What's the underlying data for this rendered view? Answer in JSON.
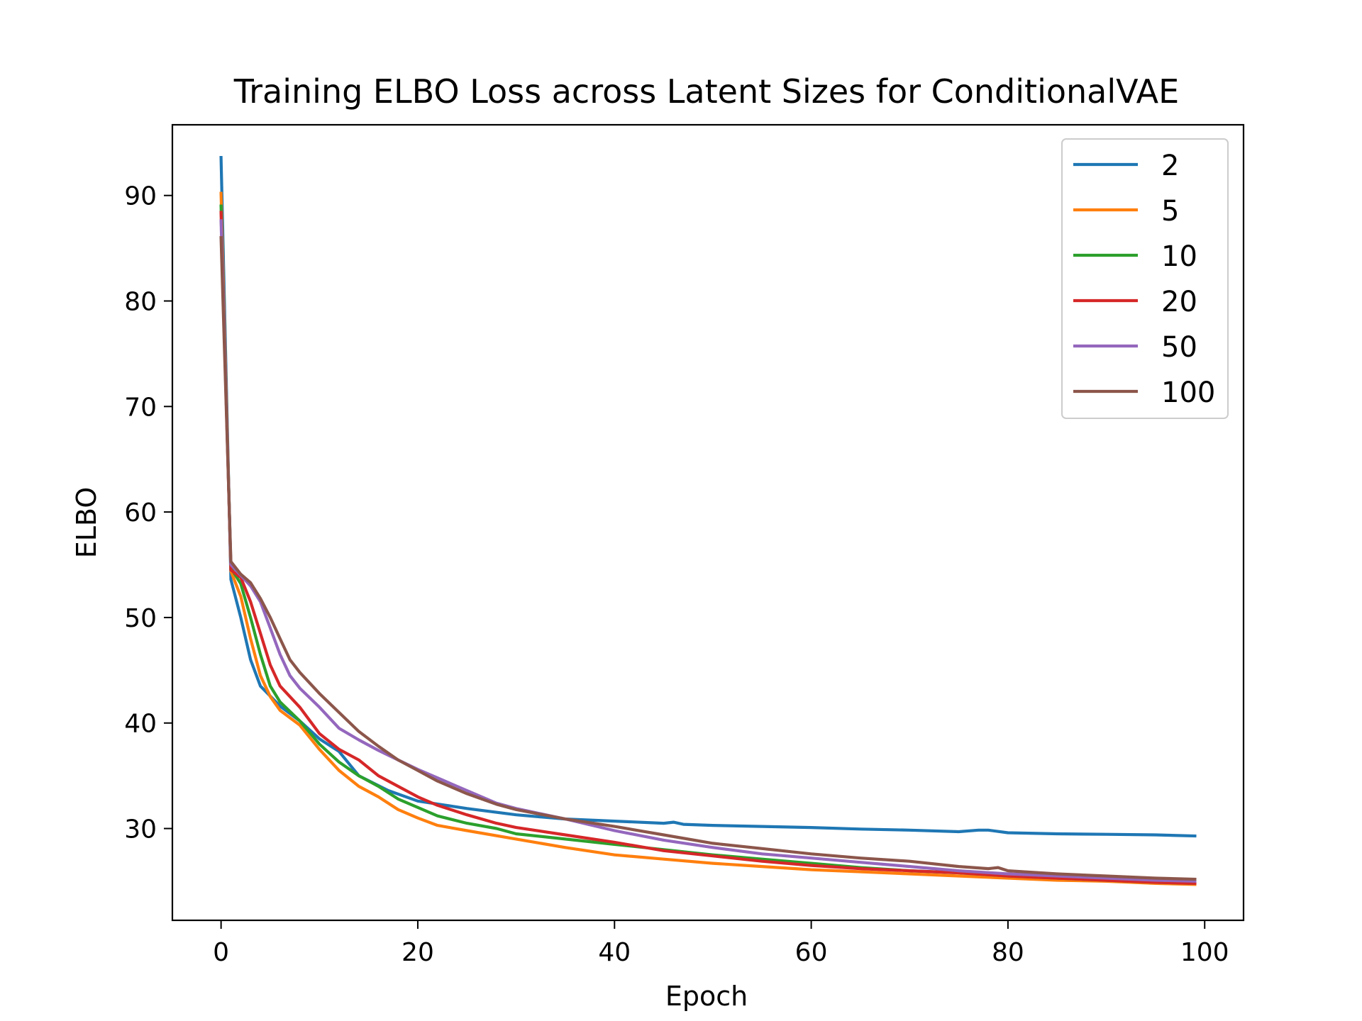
{
  "chart_data": {
    "type": "line",
    "title": "Training ELBO Loss across Latent Sizes for ConditionalVAE",
    "xlabel": "Epoch",
    "ylabel": "ELBO",
    "xlim": [
      -4.95,
      103.95
    ],
    "ylim": [
      21.3,
      96.7
    ],
    "xticks": [
      0,
      20,
      40,
      60,
      80,
      100
    ],
    "yticks": [
      30,
      40,
      50,
      60,
      70,
      80,
      90
    ],
    "grid": false,
    "legend_position": "top-right",
    "series": [
      {
        "name": "2",
        "color": "#1f77b4",
        "points": [
          [
            0,
            93.6
          ],
          [
            1,
            53.6
          ],
          [
            2,
            50.0
          ],
          [
            3,
            46.0
          ],
          [
            4,
            43.5
          ],
          [
            6,
            41.6
          ],
          [
            8,
            40.2
          ],
          [
            10,
            38.5
          ],
          [
            12,
            37.3
          ],
          [
            14,
            35.0
          ],
          [
            17,
            33.6
          ],
          [
            20,
            32.6
          ],
          [
            25,
            31.9
          ],
          [
            30,
            31.3
          ],
          [
            35,
            30.9
          ],
          [
            40,
            30.7
          ],
          [
            45,
            30.5
          ],
          [
            46,
            30.6
          ],
          [
            47,
            30.4
          ],
          [
            50,
            30.3
          ],
          [
            55,
            30.2
          ],
          [
            60,
            30.1
          ],
          [
            65,
            29.95
          ],
          [
            70,
            29.85
          ],
          [
            75,
            29.7
          ],
          [
            77,
            29.85
          ],
          [
            78,
            29.85
          ],
          [
            80,
            29.6
          ],
          [
            85,
            29.5
          ],
          [
            90,
            29.45
          ],
          [
            95,
            29.4
          ],
          [
            99,
            29.3
          ]
        ]
      },
      {
        "name": "5",
        "color": "#ff7f0e",
        "points": [
          [
            0,
            90.2
          ],
          [
            1,
            54.4
          ],
          [
            2,
            52.0
          ],
          [
            3,
            48.0
          ],
          [
            4,
            44.5
          ],
          [
            5,
            42.5
          ],
          [
            6,
            41.2
          ],
          [
            8,
            39.8
          ],
          [
            10,
            37.5
          ],
          [
            12,
            35.5
          ],
          [
            14,
            34.0
          ],
          [
            16,
            33.0
          ],
          [
            18,
            31.8
          ],
          [
            20,
            31.0
          ],
          [
            22,
            30.3
          ],
          [
            25,
            29.8
          ],
          [
            30,
            29.0
          ],
          [
            35,
            28.2
          ],
          [
            40,
            27.5
          ],
          [
            45,
            27.1
          ],
          [
            50,
            26.7
          ],
          [
            55,
            26.4
          ],
          [
            60,
            26.1
          ],
          [
            65,
            25.9
          ],
          [
            70,
            25.7
          ],
          [
            75,
            25.5
          ],
          [
            80,
            25.3
          ],
          [
            85,
            25.1
          ],
          [
            90,
            25.0
          ],
          [
            95,
            24.8
          ],
          [
            99,
            24.7
          ]
        ]
      },
      {
        "name": "10",
        "color": "#2ca02c",
        "points": [
          [
            0,
            89.0
          ],
          [
            1,
            54.7
          ],
          [
            2,
            53.2
          ],
          [
            3,
            50.0
          ],
          [
            4,
            46.5
          ],
          [
            5,
            43.5
          ],
          [
            6,
            42.0
          ],
          [
            8,
            40.2
          ],
          [
            10,
            38.0
          ],
          [
            12,
            36.3
          ],
          [
            14,
            35.0
          ],
          [
            16,
            34.0
          ],
          [
            18,
            32.8
          ],
          [
            20,
            32.0
          ],
          [
            22,
            31.2
          ],
          [
            25,
            30.5
          ],
          [
            28,
            30.0
          ],
          [
            30,
            29.5
          ],
          [
            35,
            29.0
          ],
          [
            40,
            28.5
          ],
          [
            45,
            28.0
          ],
          [
            50,
            27.5
          ],
          [
            55,
            27.1
          ],
          [
            60,
            26.7
          ],
          [
            65,
            26.3
          ],
          [
            70,
            26.0
          ],
          [
            75,
            25.8
          ],
          [
            80,
            25.5
          ],
          [
            85,
            25.3
          ],
          [
            90,
            25.1
          ],
          [
            95,
            24.9
          ],
          [
            99,
            24.8
          ]
        ]
      },
      {
        "name": "20",
        "color": "#d62728",
        "points": [
          [
            0,
            88.4
          ],
          [
            1,
            54.5
          ],
          [
            2,
            53.8
          ],
          [
            3,
            51.5
          ],
          [
            4,
            48.5
          ],
          [
            5,
            45.5
          ],
          [
            6,
            43.5
          ],
          [
            8,
            41.5
          ],
          [
            10,
            39.0
          ],
          [
            12,
            37.5
          ],
          [
            14,
            36.5
          ],
          [
            16,
            35.0
          ],
          [
            18,
            34.0
          ],
          [
            20,
            33.0
          ],
          [
            22,
            32.2
          ],
          [
            25,
            31.3
          ],
          [
            28,
            30.5
          ],
          [
            30,
            30.1
          ],
          [
            35,
            29.4
          ],
          [
            40,
            28.7
          ],
          [
            45,
            27.9
          ],
          [
            50,
            27.4
          ],
          [
            55,
            26.9
          ],
          [
            60,
            26.5
          ],
          [
            65,
            26.2
          ],
          [
            70,
            26.0
          ],
          [
            75,
            25.8
          ],
          [
            80,
            25.5
          ],
          [
            85,
            25.3
          ],
          [
            90,
            25.1
          ],
          [
            95,
            24.9
          ],
          [
            99,
            24.8
          ]
        ]
      },
      {
        "name": "50",
        "color": "#9467bd",
        "points": [
          [
            0,
            87.6
          ],
          [
            1,
            55.0
          ],
          [
            2,
            54.0
          ],
          [
            3,
            53.0
          ],
          [
            4,
            51.5
          ],
          [
            5,
            49.0
          ],
          [
            6,
            46.5
          ],
          [
            7,
            44.5
          ],
          [
            8,
            43.3
          ],
          [
            10,
            41.5
          ],
          [
            12,
            39.5
          ],
          [
            14,
            38.4
          ],
          [
            16,
            37.4
          ],
          [
            18,
            36.5
          ],
          [
            20,
            35.6
          ],
          [
            22,
            34.8
          ],
          [
            25,
            33.6
          ],
          [
            28,
            32.4
          ],
          [
            30,
            31.9
          ],
          [
            35,
            30.9
          ],
          [
            40,
            29.8
          ],
          [
            45,
            28.9
          ],
          [
            50,
            28.2
          ],
          [
            55,
            27.6
          ],
          [
            60,
            27.2
          ],
          [
            65,
            26.8
          ],
          [
            70,
            26.4
          ],
          [
            75,
            26.0
          ],
          [
            80,
            25.7
          ],
          [
            85,
            25.5
          ],
          [
            90,
            25.3
          ],
          [
            95,
            25.1
          ],
          [
            99,
            25.0
          ]
        ]
      },
      {
        "name": "100",
        "color": "#8c564b",
        "points": [
          [
            0,
            86.0
          ],
          [
            1,
            55.3
          ],
          [
            2,
            54.1
          ],
          [
            3,
            53.3
          ],
          [
            4,
            51.8
          ],
          [
            5,
            50.0
          ],
          [
            6,
            48.0
          ],
          [
            7,
            46.0
          ],
          [
            8,
            44.8
          ],
          [
            10,
            42.8
          ],
          [
            12,
            41.0
          ],
          [
            14,
            39.2
          ],
          [
            16,
            37.8
          ],
          [
            18,
            36.5
          ],
          [
            20,
            35.5
          ],
          [
            22,
            34.5
          ],
          [
            25,
            33.3
          ],
          [
            28,
            32.3
          ],
          [
            30,
            31.8
          ],
          [
            35,
            30.9
          ],
          [
            40,
            30.2
          ],
          [
            45,
            29.4
          ],
          [
            50,
            28.6
          ],
          [
            55,
            28.1
          ],
          [
            60,
            27.6
          ],
          [
            65,
            27.2
          ],
          [
            70,
            26.9
          ],
          [
            75,
            26.4
          ],
          [
            78,
            26.2
          ],
          [
            79,
            26.3
          ],
          [
            80,
            26.0
          ],
          [
            85,
            25.7
          ],
          [
            90,
            25.5
          ],
          [
            95,
            25.3
          ],
          [
            99,
            25.2
          ]
        ]
      }
    ]
  }
}
